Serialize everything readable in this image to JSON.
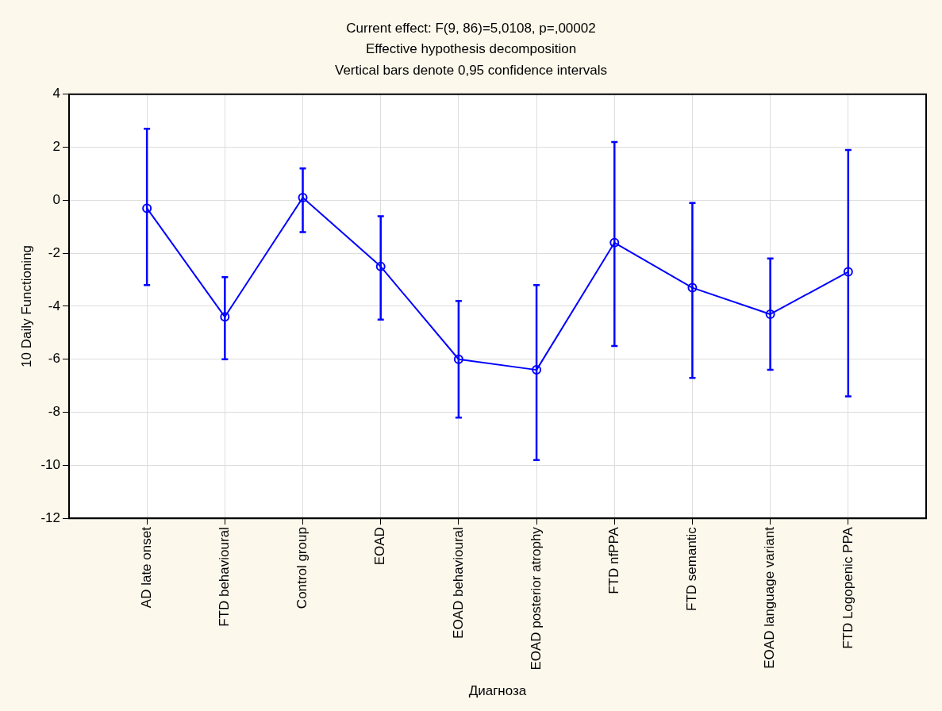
{
  "chart_data": {
    "type": "line",
    "title": "Current effect: F(9, 86)=5,0108, p=,00002",
    "subtitle": "Effective hypothesis decomposition",
    "annotations": [
      "Vertical bars denote 0,95 confidence intervals"
    ],
    "xlabel": "Диагноза",
    "ylabel": "10 Daily Functioning",
    "categories": [
      "AD late onset",
      "FTD behavioural",
      "Control group",
      "EOAD",
      "EOAD behavioural",
      "EOAD posterior atrophy",
      "FTD nfPPA",
      "FTD semantic",
      "EOAD language variant",
      "FTD Logopenic PPA"
    ],
    "series": [
      {
        "color": "#0000ff",
        "values": [
          -0.3,
          -4.4,
          0.1,
          -2.5,
          -6.0,
          -6.4,
          -1.6,
          -3.3,
          -4.3,
          -2.7
        ],
        "errors": [
          [
            -3.2,
            2.7
          ],
          [
            -6.0,
            -2.9
          ],
          [
            -1.2,
            1.2
          ],
          [
            -4.5,
            -0.6
          ],
          [
            -8.2,
            -3.8
          ],
          [
            -9.8,
            -3.2
          ],
          [
            -5.5,
            2.2
          ],
          [
            -6.7,
            -0.1
          ],
          [
            -6.4,
            -2.2
          ],
          [
            -7.4,
            1.9
          ]
        ]
      }
    ],
    "ylim": [
      -12,
      4
    ],
    "yticks": [
      -12,
      -10,
      -8,
      -6,
      -4,
      -2,
      0,
      2,
      4
    ],
    "grid": true,
    "legend": false,
    "marker": "circle",
    "line_style": "solid"
  }
}
